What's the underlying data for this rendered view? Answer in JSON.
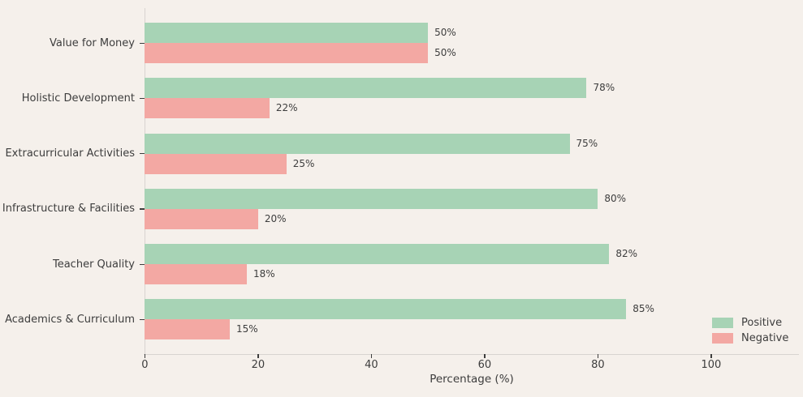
{
  "chart_data": {
    "type": "bar",
    "orientation": "horizontal",
    "title": "",
    "xlabel": "Percentage (%)",
    "ylabel": "",
    "categories": [
      "Value for Money",
      "Holistic Development",
      "Extracurricular Activities",
      "Infrastructure & Facilities",
      "Teacher Quality",
      "Academics & Curriculum"
    ],
    "series": [
      {
        "name": "Positive",
        "color": "#a7d3b5",
        "values": [
          50,
          78,
          75,
          80,
          82,
          85
        ]
      },
      {
        "name": "Negative",
        "color": "#f3a8a3",
        "values": [
          50,
          22,
          25,
          20,
          18,
          15
        ]
      }
    ],
    "value_labels": [
      [
        "50%",
        "78%",
        "75%",
        "80%",
        "82%",
        "85%"
      ],
      [
        "50%",
        "22%",
        "25%",
        "20%",
        "18%",
        "15%"
      ]
    ],
    "xticks": [
      "0",
      "20",
      "40",
      "60",
      "80",
      "100"
    ],
    "xlim": [
      0,
      115.5
    ],
    "grid": false,
    "legend": {
      "position": "lower right",
      "entries": [
        "Positive",
        "Negative"
      ]
    },
    "colors": {
      "background": "#f5f0eb",
      "positive": "#a7d3b5",
      "negative": "#f3a8a3",
      "text": "#3d3d3d",
      "spine": "#d8d4d0"
    }
  }
}
